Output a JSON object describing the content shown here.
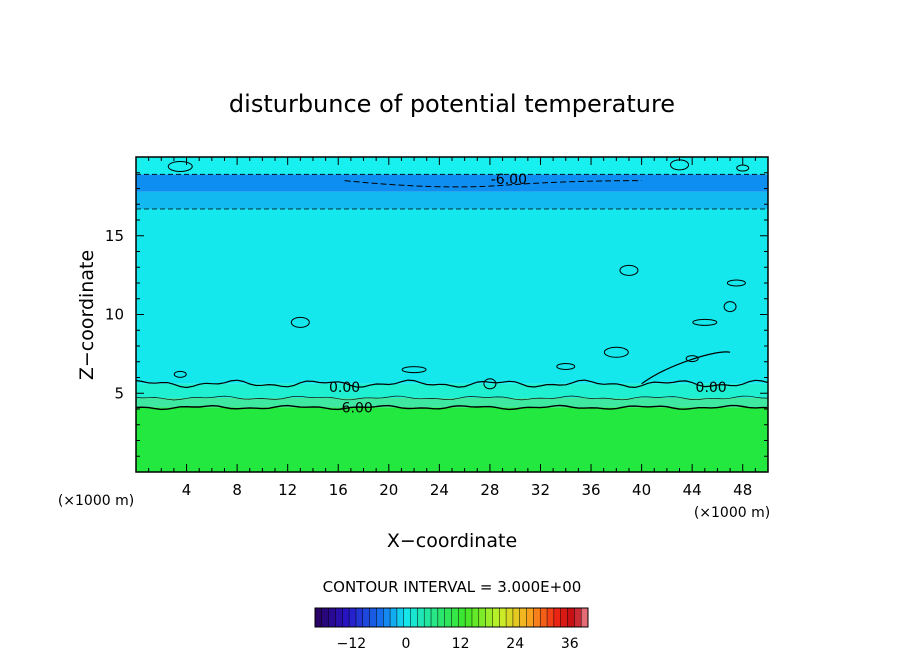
{
  "chart_data": {
    "type": "heatmap",
    "title": "disturbunce of potential temperature",
    "xlabel": "X−coordinate",
    "ylabel": "Z−coordinate",
    "x_unit_label": "(×1000 m)",
    "y_unit_label": "(×1000 m)",
    "xlim": [
      0,
      50
    ],
    "ylim": [
      0,
      20
    ],
    "x_ticks": [
      "4",
      "8",
      "12",
      "16",
      "20",
      "24",
      "28",
      "32",
      "36",
      "40",
      "44",
      "48"
    ],
    "x_tick_values": [
      4,
      8,
      12,
      16,
      20,
      24,
      28,
      32,
      36,
      40,
      44,
      48
    ],
    "y_ticks": [
      "5",
      "10",
      "15"
    ],
    "y_tick_values": [
      5,
      10,
      15
    ],
    "contour_interval_label": "CONTOUR INTERVAL = 3.000E+00",
    "colorbar": {
      "range": [
        -20,
        40
      ],
      "tick_labels": [
        "−12",
        "0",
        "12",
        "24",
        "36"
      ],
      "tick_values": [
        -12,
        0,
        12,
        24,
        36
      ]
    },
    "bands": [
      {
        "z0": 0,
        "z1": 4.1,
        "color": "#22e840",
        "value": 7.5
      },
      {
        "z0": 4.1,
        "z1": 4.7,
        "color": "#3fe8a0",
        "value": 4.5
      },
      {
        "z0": 4.7,
        "z1": 5.6,
        "color": "#1ff0d2",
        "value": 1.5
      },
      {
        "z0": 5.6,
        "z1": 16.7,
        "color": "#14e8ec",
        "value": -1.5
      },
      {
        "z0": 16.7,
        "z1": 17.8,
        "color": "#12b8f0",
        "value": -4.5
      },
      {
        "z0": 17.8,
        "z1": 18.9,
        "color": "#0e8ef0",
        "value": -7.5
      },
      {
        "z0": 18.9,
        "z1": 20,
        "color": "#18f0f0",
        "value": -1.5
      }
    ],
    "contour_labels": [
      {
        "text": "0.00",
        "x": 16.5,
        "z": 5.4
      },
      {
        "text": "6.00",
        "x": 17.5,
        "z": 4.1
      },
      {
        "text": "0.00",
        "x": 45.5,
        "z": 5.4
      },
      {
        "text": "-6.00",
        "x": 29.5,
        "z": 18.6
      }
    ]
  }
}
